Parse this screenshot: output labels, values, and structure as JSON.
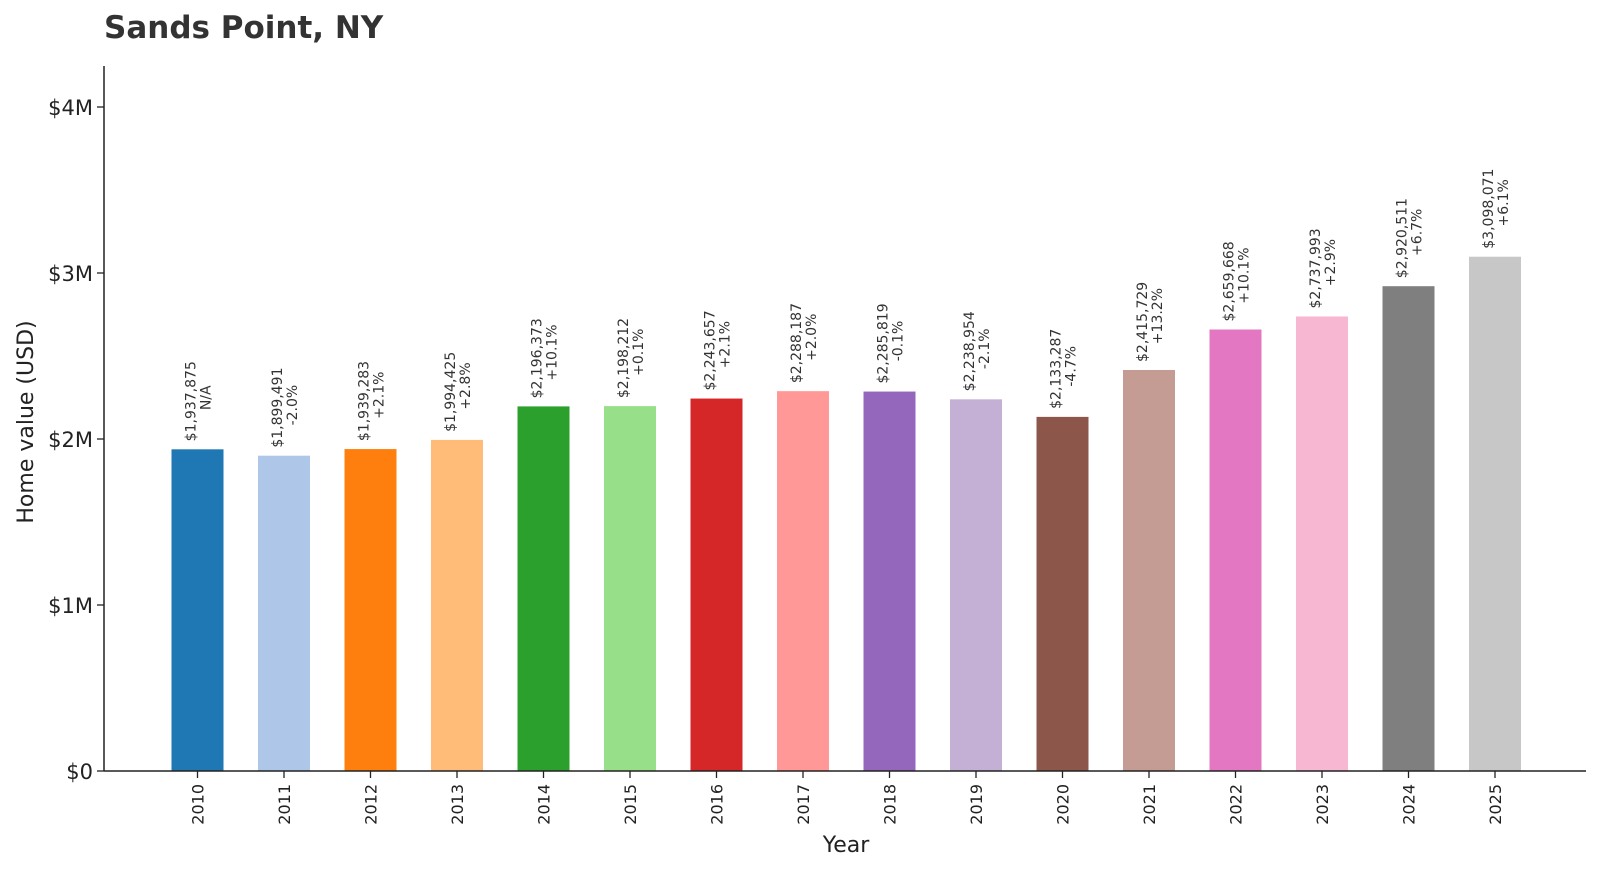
{
  "chart_data": {
    "type": "bar",
    "title": "Sands Point, NY",
    "xlabel": "Year",
    "ylabel": "Home value (USD)",
    "ylim": [
      0,
      4250000
    ],
    "yticks": [
      {
        "value": 0,
        "label": "$0"
      },
      {
        "value": 1000000,
        "label": "$1M"
      },
      {
        "value": 2000000,
        "label": "$2M"
      },
      {
        "value": 3000000,
        "label": "$3M"
      },
      {
        "value": 4000000,
        "label": "$4M"
      }
    ],
    "grid": false,
    "categories": [
      "2010",
      "2011",
      "2012",
      "2013",
      "2014",
      "2015",
      "2016",
      "2017",
      "2018",
      "2019",
      "2020",
      "2021",
      "2022",
      "2023",
      "2024",
      "2025"
    ],
    "values": [
      1937875,
      1899491,
      1939283,
      1994425,
      2196373,
      2198212,
      2243657,
      2288187,
      2285819,
      2238954,
      2133287,
      2415729,
      2659668,
      2737993,
      2920511,
      3098071
    ],
    "value_labels": [
      "$1,937,875",
      "$1,899,491",
      "$1,939,283",
      "$1,994,425",
      "$2,196,373",
      "$2,198,212",
      "$2,243,657",
      "$2,288,187",
      "$2,285,819",
      "$2,238,954",
      "$2,133,287",
      "$2,415,729",
      "$2,659,668",
      "$2,737,993",
      "$2,920,511",
      "$3,098,071"
    ],
    "change_labels": [
      "N/A",
      "-2.0%",
      "+2.1%",
      "+2.8%",
      "+10.1%",
      "+0.1%",
      "+2.1%",
      "+2.0%",
      "-0.1%",
      "-2.1%",
      "-4.7%",
      "+13.2%",
      "+10.1%",
      "+2.9%",
      "+6.7%",
      "+6.1%"
    ],
    "colors": [
      "#1f77b4",
      "#aec7e8",
      "#ff7f0e",
      "#ffbb78",
      "#2ca02c",
      "#98df8a",
      "#d62728",
      "#ff9896",
      "#9467bd",
      "#c5b0d5",
      "#8c564b",
      "#c49c94",
      "#e377c2",
      "#f7b6d2",
      "#7f7f7f",
      "#c7c7c7"
    ]
  }
}
